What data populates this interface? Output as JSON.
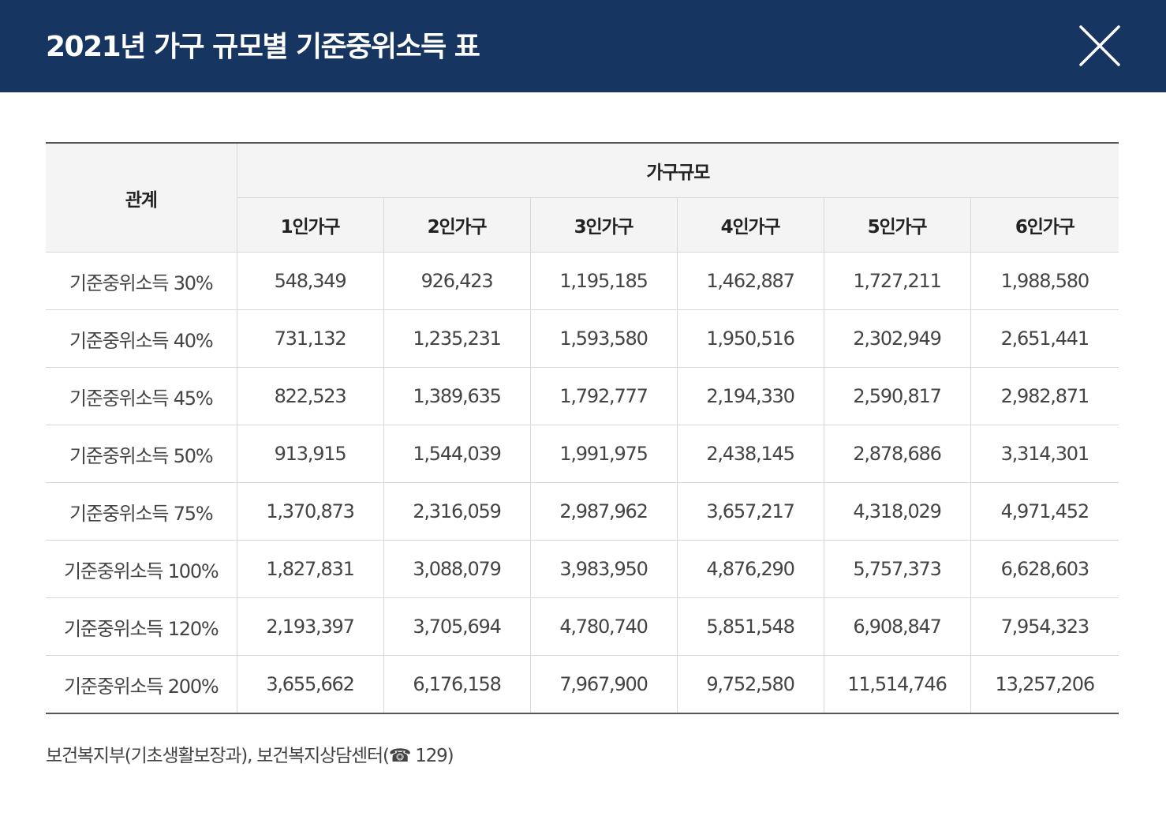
{
  "header": {
    "title": "2021년 가구 규모별 기준중위소득 표",
    "close_icon": "close-icon"
  },
  "colors": {
    "header_bg": "#163560",
    "header_text": "#ffffff",
    "table_head_bg": "#f4f4f4"
  },
  "table": {
    "relation_header": "관계",
    "group_header": "가구규모",
    "columns": [
      "1인가구",
      "2인가구",
      "3인가구",
      "4인가구",
      "5인가구",
      "6인가구"
    ],
    "rows": [
      {
        "label": "기준중위소득 30%",
        "values": [
          "548,349",
          "926,423",
          "1,195,185",
          "1,462,887",
          "1,727,211",
          "1,988,580"
        ]
      },
      {
        "label": "기준중위소득 40%",
        "values": [
          "731,132",
          "1,235,231",
          "1,593,580",
          "1,950,516",
          "2,302,949",
          "2,651,441"
        ]
      },
      {
        "label": "기준중위소득 45%",
        "values": [
          "822,523",
          "1,389,635",
          "1,792,777",
          "2,194,330",
          "2,590,817",
          "2,982,871"
        ]
      },
      {
        "label": "기준중위소득 50%",
        "values": [
          "913,915",
          "1,544,039",
          "1,991,975",
          "2,438,145",
          "2,878,686",
          "3,314,301"
        ]
      },
      {
        "label": "기준중위소득 75%",
        "values": [
          "1,370,873",
          "2,316,059",
          "2,987,962",
          "3,657,217",
          "4,318,029",
          "4,971,452"
        ]
      },
      {
        "label": "기준중위소득 100%",
        "values": [
          "1,827,831",
          "3,088,079",
          "3,983,950",
          "4,876,290",
          "5,757,373",
          "6,628,603"
        ]
      },
      {
        "label": "기준중위소득 120%",
        "values": [
          "2,193,397",
          "3,705,694",
          "4,780,740",
          "5,851,548",
          "6,908,847",
          "7,954,323"
        ]
      },
      {
        "label": "기준중위소득 200%",
        "values": [
          "3,655,662",
          "6,176,158",
          "7,967,900",
          "9,752,580",
          "11,514,746",
          "13,257,206"
        ]
      }
    ]
  },
  "source": {
    "text": "보건복지부(기초생활보장과), 보건복지상담센터(☎ 129)"
  }
}
